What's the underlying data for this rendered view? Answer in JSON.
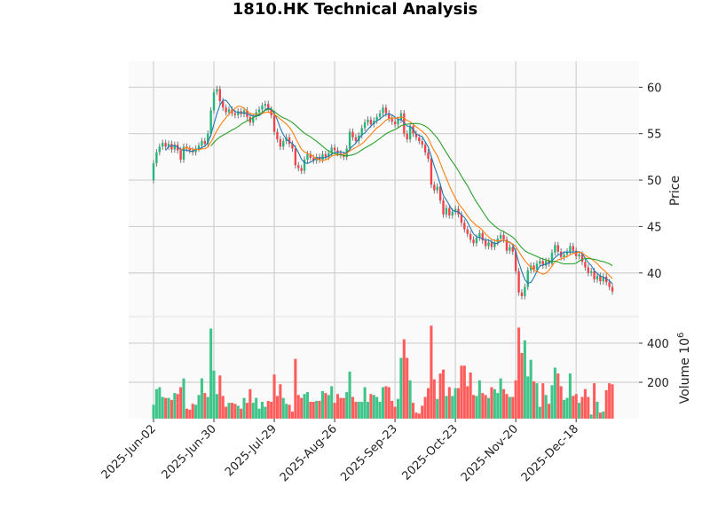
{
  "chart_data": {
    "type": "candlestick",
    "title": "1810.HK Technical Analysis",
    "ylabel": "Price",
    "volume_label": "Volume",
    "volume_exponent": "10",
    "volume_exponent_power": "6",
    "ylim": [
      35.3,
      62.8
    ],
    "volume_ylim": [
      14,
      536
    ],
    "yticks": [
      40,
      45,
      50,
      55,
      60
    ],
    "volume_yticks": [
      200,
      400
    ],
    "xtick_labels": [
      "2025-Jun-02",
      "2025-Jun-30",
      "2025-Jul-29",
      "2025-Aug-26",
      "2025-Sep-23",
      "2025-Oct-23",
      "2025-Nov-20",
      "2025-Dec-18"
    ],
    "xtick_index_step": 20,
    "grid": true,
    "moving_averages": [
      5,
      10,
      20
    ],
    "first_open": 50.0,
    "close": [
      51.8,
      53.0,
      53.6,
      54.0,
      53.6,
      53.9,
      53.3,
      53.8,
      53.2,
      52.2,
      53.6,
      53.4,
      53.2,
      53.0,
      53.4,
      53.7,
      54.2,
      53.9,
      55.0,
      57.5,
      59.5,
      59.8,
      58.5,
      57.8,
      57.3,
      57.6,
      57.2,
      57.0,
      57.4,
      57.1,
      57.5,
      56.8,
      56.2,
      56.8,
      57.3,
      57.6,
      58.0,
      58.2,
      57.6,
      57.0,
      55.2,
      54.4,
      53.6,
      54.2,
      54.6,
      53.9,
      53.4,
      51.6,
      51.3,
      51.0,
      52.2,
      52.8,
      52.4,
      52.1,
      52.5,
      52.2,
      52.8,
      52.5,
      52.9,
      53.5,
      53.2,
      52.9,
      52.7,
      52.5,
      53.4,
      55.2,
      54.6,
      54.2,
      54.8,
      55.6,
      56.2,
      56.5,
      56.0,
      56.4,
      56.8,
      57.2,
      57.8,
      57.2,
      56.6,
      56.3,
      56.0,
      56.5,
      57.2,
      55.0,
      54.4,
      55.8,
      55.0,
      54.6,
      54.2,
      53.8,
      53.0,
      52.3,
      49.5,
      48.9,
      49.3,
      47.8,
      46.3,
      47.0,
      46.2,
      46.6,
      46.9,
      46.3,
      45.4,
      44.7,
      44.2,
      43.6,
      43.2,
      43.8,
      44.3,
      43.5,
      42.9,
      43.3,
      42.8,
      43.3,
      43.7,
      44.1,
      43.6,
      42.4,
      42.8,
      42.3,
      40.2,
      37.9,
      37.5,
      38.5,
      40.3,
      40.8,
      40.4,
      41.0,
      41.3,
      40.8,
      41.3,
      41.0,
      42.2,
      43.0,
      42.3,
      41.7,
      42.0,
      42.3,
      42.9,
      42.4,
      41.8,
      42.0,
      41.2,
      40.6,
      40.0,
      40.2,
      39.3,
      39.7,
      39.1,
      39.6,
      39.0,
      38.5,
      38.0
    ],
    "volume": [
      85,
      165,
      175,
      125,
      120,
      120,
      110,
      145,
      140,
      175,
      220,
      65,
      60,
      90,
      85,
      135,
      220,
      145,
      125,
      475,
      260,
      140,
      235,
      130,
      75,
      95,
      95,
      90,
      80,
      65,
      120,
      95,
      165,
      95,
      120,
      65,
      100,
      75,
      105,
      100,
      240,
      130,
      190,
      120,
      90,
      85,
      50,
      320,
      135,
      120,
      140,
      150,
      100,
      100,
      105,
      105,
      155,
      145,
      135,
      180,
      95,
      140,
      120,
      120,
      150,
      255,
      125,
      100,
      100,
      100,
      175,
      100,
      140,
      135,
      125,
      100,
      175,
      180,
      175,
      105,
      75,
      115,
      325,
      420,
      325,
      210,
      95,
      45,
      40,
      80,
      125,
      170,
      490,
      215,
      115,
      245,
      265,
      130,
      175,
      130,
      170,
      170,
      285,
      285,
      180,
      250,
      135,
      130,
      210,
      145,
      135,
      120,
      175,
      165,
      145,
      220,
      165,
      140,
      125,
      125,
      210,
      480,
      350,
      415,
      230,
      315,
      205,
      195,
      75,
      195,
      135,
      90,
      185,
      275,
      245,
      180,
      110,
      120,
      245,
      130,
      140,
      95,
      125,
      165,
      125,
      35,
      195,
      100,
      45,
      50,
      160,
      195,
      190
    ],
    "colors": {
      "up": "#26b57a",
      "down": "#f2424a",
      "volume_up": "#3fc48a",
      "volume_down": "#ff5c5c",
      "ma": [
        "#1f77b4",
        "#ff7f0e",
        "#2ca02c"
      ],
      "grid": "#d0d0d0",
      "panel": "#fafafa"
    }
  }
}
